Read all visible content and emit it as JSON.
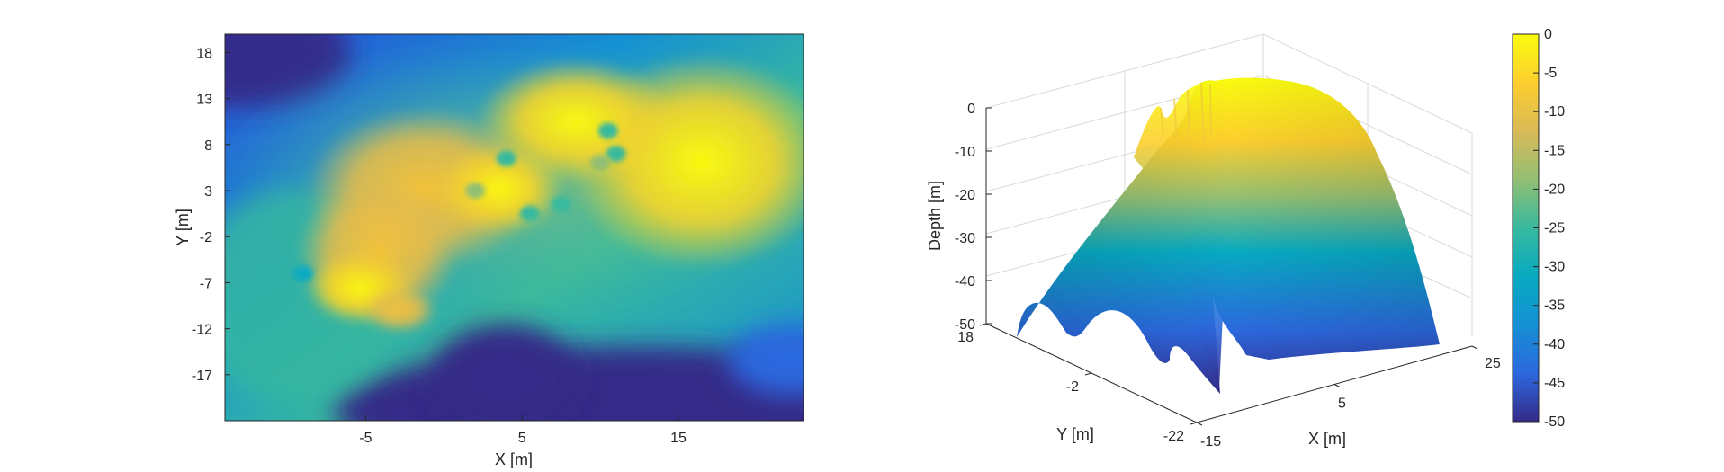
{
  "chart_data": [
    {
      "type": "heatmap",
      "xlabel": "X [m]",
      "ylabel": "Y [m]",
      "xticks": [
        -5,
        5,
        15
      ],
      "yticks": [
        18,
        13,
        8,
        3,
        -2,
        -7,
        -12,
        -17
      ],
      "xlim": [
        -14,
        23
      ],
      "ylim": [
        -22,
        20
      ],
      "clim": [
        -50,
        0
      ],
      "colormap": "parula",
      "hotspots": [
        {
          "x": 10.5,
          "y": 9.5,
          "value": -27
        },
        {
          "x": 11.0,
          "y": 7.0,
          "value": -24
        },
        {
          "x": 10.0,
          "y": 6.0,
          "value": -20
        },
        {
          "x": 4.0,
          "y": 6.5,
          "value": -23
        },
        {
          "x": 2.0,
          "y": 3.0,
          "value": -20
        },
        {
          "x": 5.5,
          "y": 0.5,
          "value": -25
        },
        {
          "x": 7.5,
          "y": 1.5,
          "value": -24
        },
        {
          "x": -9.0,
          "y": -6.0,
          "value": -30
        }
      ],
      "low_region": {
        "x_from": -4,
        "y_below": -12,
        "value": -50
      }
    },
    {
      "type": "surface3d",
      "xlabel": "X [m]",
      "ylabel": "Y [m]",
      "zlabel": "Depth [m]",
      "xticks": [
        -15,
        5,
        25
      ],
      "yticks": [
        18,
        -2,
        -22
      ],
      "zticks": [
        0,
        -10,
        -20,
        -30,
        -40,
        -50
      ],
      "zlim": [
        -50,
        0
      ],
      "colormap": "parula"
    }
  ],
  "colorbar": {
    "ticks": [
      "0",
      "-5",
      "-10",
      "-15",
      "-20",
      "-25",
      "-30",
      "-35",
      "-40",
      "-45",
      "-50"
    ],
    "range": [
      -50,
      0
    ]
  },
  "colors": {
    "parula": [
      "#352a87",
      "#2c68de",
      "#1590d4",
      "#07aac1",
      "#38b99e",
      "#92bf73",
      "#d9ba56",
      "#fcce2e",
      "#f9fb0e"
    ]
  }
}
